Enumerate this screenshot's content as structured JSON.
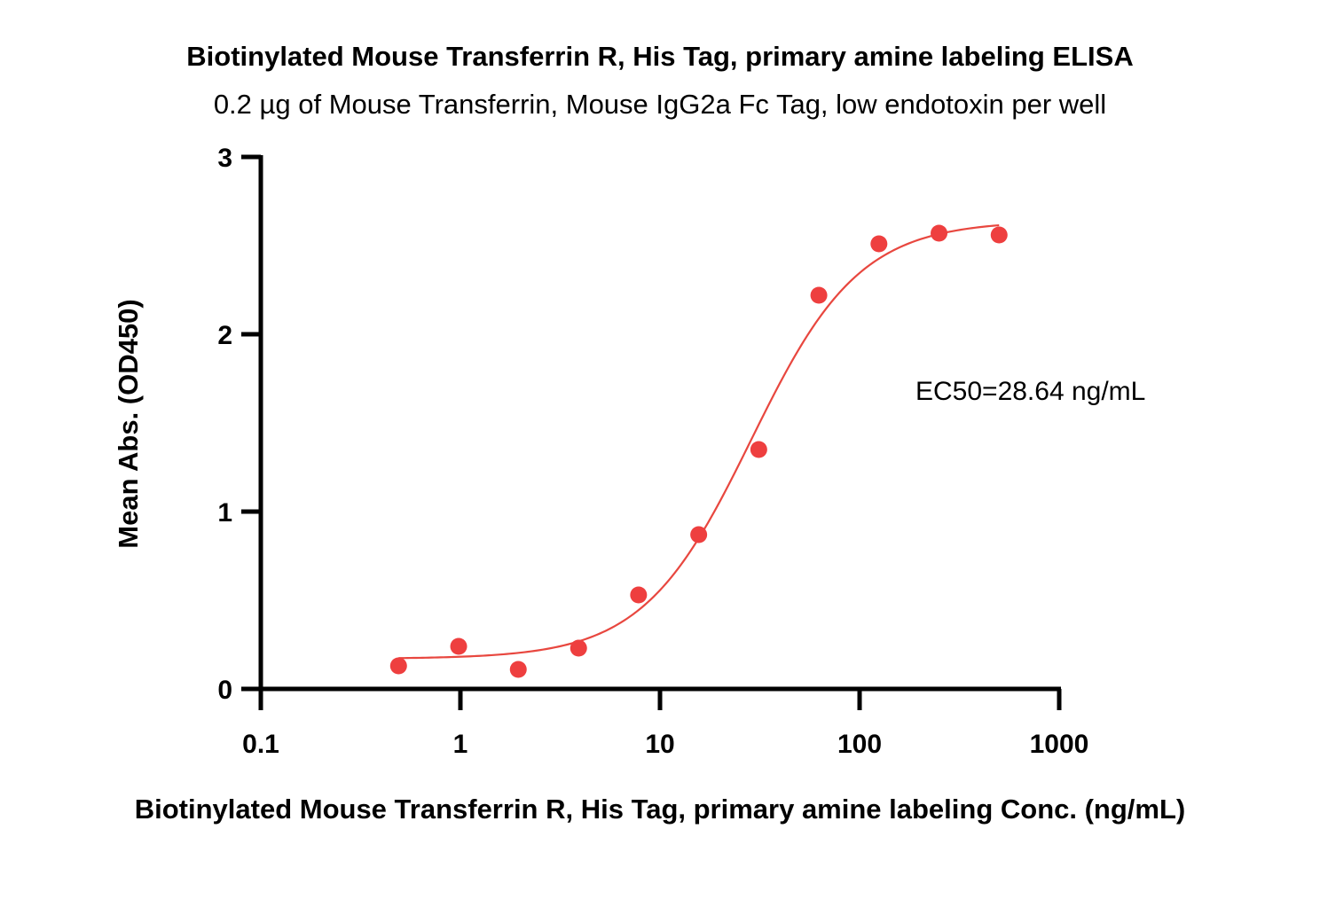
{
  "chart_data": {
    "type": "scatter",
    "title": "Biotinylated Mouse Transferrin R, His Tag, primary amine labeling ELISA",
    "subtitle": "0.2 µg of Mouse Transferrin, Mouse IgG2a Fc Tag, low endotoxin per well",
    "xlabel": "Biotinylated Mouse Transferrin R, His Tag, primary amine labeling Conc. (ng/mL)",
    "ylabel": "Mean Abs. (OD450)",
    "x_scale": "log",
    "xlim": [
      0.1,
      1000
    ],
    "ylim": [
      0,
      3
    ],
    "x_ticks": [
      0.1,
      1,
      10,
      100,
      1000
    ],
    "x_tick_labels": [
      "0.1",
      "1",
      "10",
      "100",
      "1000"
    ],
    "y_ticks": [
      0,
      1,
      2,
      3
    ],
    "y_tick_labels": [
      "0",
      "1",
      "2",
      "3"
    ],
    "grid": false,
    "points": {
      "x": [
        0.49,
        0.98,
        1.95,
        3.91,
        7.81,
        15.63,
        31.25,
        62.5,
        125,
        250,
        500
      ],
      "y": [
        0.13,
        0.24,
        0.11,
        0.23,
        0.53,
        0.87,
        1.35,
        2.22,
        2.51,
        2.57,
        2.56
      ]
    },
    "fit_curve": {
      "model": "4PL",
      "bottom": 0.17,
      "top": 2.64,
      "ec50": 28.64,
      "hill": 1.6
    },
    "annotation": "EC50=28.64 ng/mL",
    "colors": {
      "marker": "#ee3f3f",
      "curve": "#e8473f",
      "axis": "#000000"
    }
  }
}
